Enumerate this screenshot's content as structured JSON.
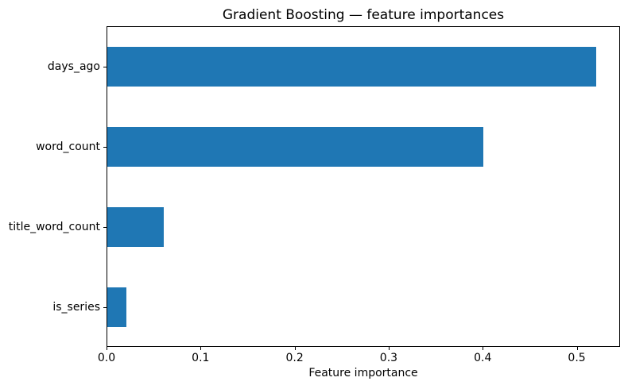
{
  "figure": {
    "background": "#ffffff",
    "text_color": "#000000"
  },
  "chart_data": {
    "type": "bar",
    "orientation": "horizontal",
    "title": "Gradient Boosting — feature importances",
    "categories": [
      "days_ago",
      "word_count",
      "title_word_count",
      "is_series"
    ],
    "values": [
      0.52,
      0.4,
      0.06,
      0.02
    ],
    "xlabel": "Feature importance",
    "ylabel": "",
    "xlim": [
      0,
      0.546
    ],
    "xticks": [
      0.0,
      0.1,
      0.2,
      0.3,
      0.4,
      0.5
    ],
    "xtick_labels": [
      "0.0",
      "0.1",
      "0.2",
      "0.3",
      "0.4",
      "0.5"
    ],
    "bar_color": "#1f77b4",
    "grid": false,
    "legend": false
  }
}
